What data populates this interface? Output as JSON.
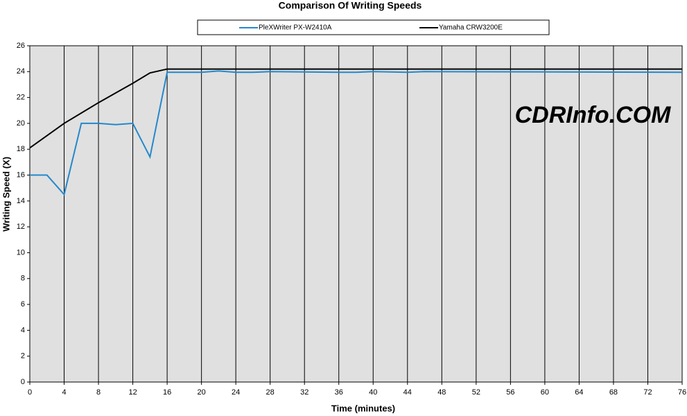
{
  "chart_data": {
    "type": "line",
    "title": "Comparison Of Writing Speeds",
    "x_label": "Time (minutes)",
    "y_label": "Writing Speed (X)",
    "annotation": "CDRInfo.COM",
    "xlim": [
      0,
      76
    ],
    "xticks": [
      0,
      4,
      8,
      12,
      16,
      20,
      24,
      28,
      32,
      36,
      40,
      44,
      48,
      52,
      56,
      60,
      64,
      68,
      72,
      76
    ],
    "ylim": [
      0,
      26
    ],
    "yticks": [
      0,
      2,
      4,
      6,
      8,
      10,
      12,
      14,
      16,
      18,
      20,
      22,
      24,
      26
    ],
    "grid": "x",
    "series": [
      {
        "name": "PleXWriter PX-W2410A",
        "color": "#2288cc",
        "x": [
          0,
          2,
          4,
          6,
          8,
          10,
          12,
          14,
          16,
          20,
          22,
          24,
          26,
          28,
          36,
          38,
          40,
          44,
          46,
          76
        ],
        "values": [
          16,
          16,
          14.5,
          20,
          20,
          19.9,
          20,
          17.4,
          23.95,
          23.95,
          24.05,
          23.95,
          23.95,
          24,
          23.95,
          23.95,
          24,
          23.95,
          24,
          23.95
        ]
      },
      {
        "name": "Yamaha CRW3200E",
        "color": "#000000",
        "x": [
          0,
          4,
          8,
          12,
          14,
          16,
          76
        ],
        "values": [
          18.1,
          20,
          21.6,
          23.1,
          23.9,
          24.2,
          24.2
        ]
      }
    ]
  }
}
